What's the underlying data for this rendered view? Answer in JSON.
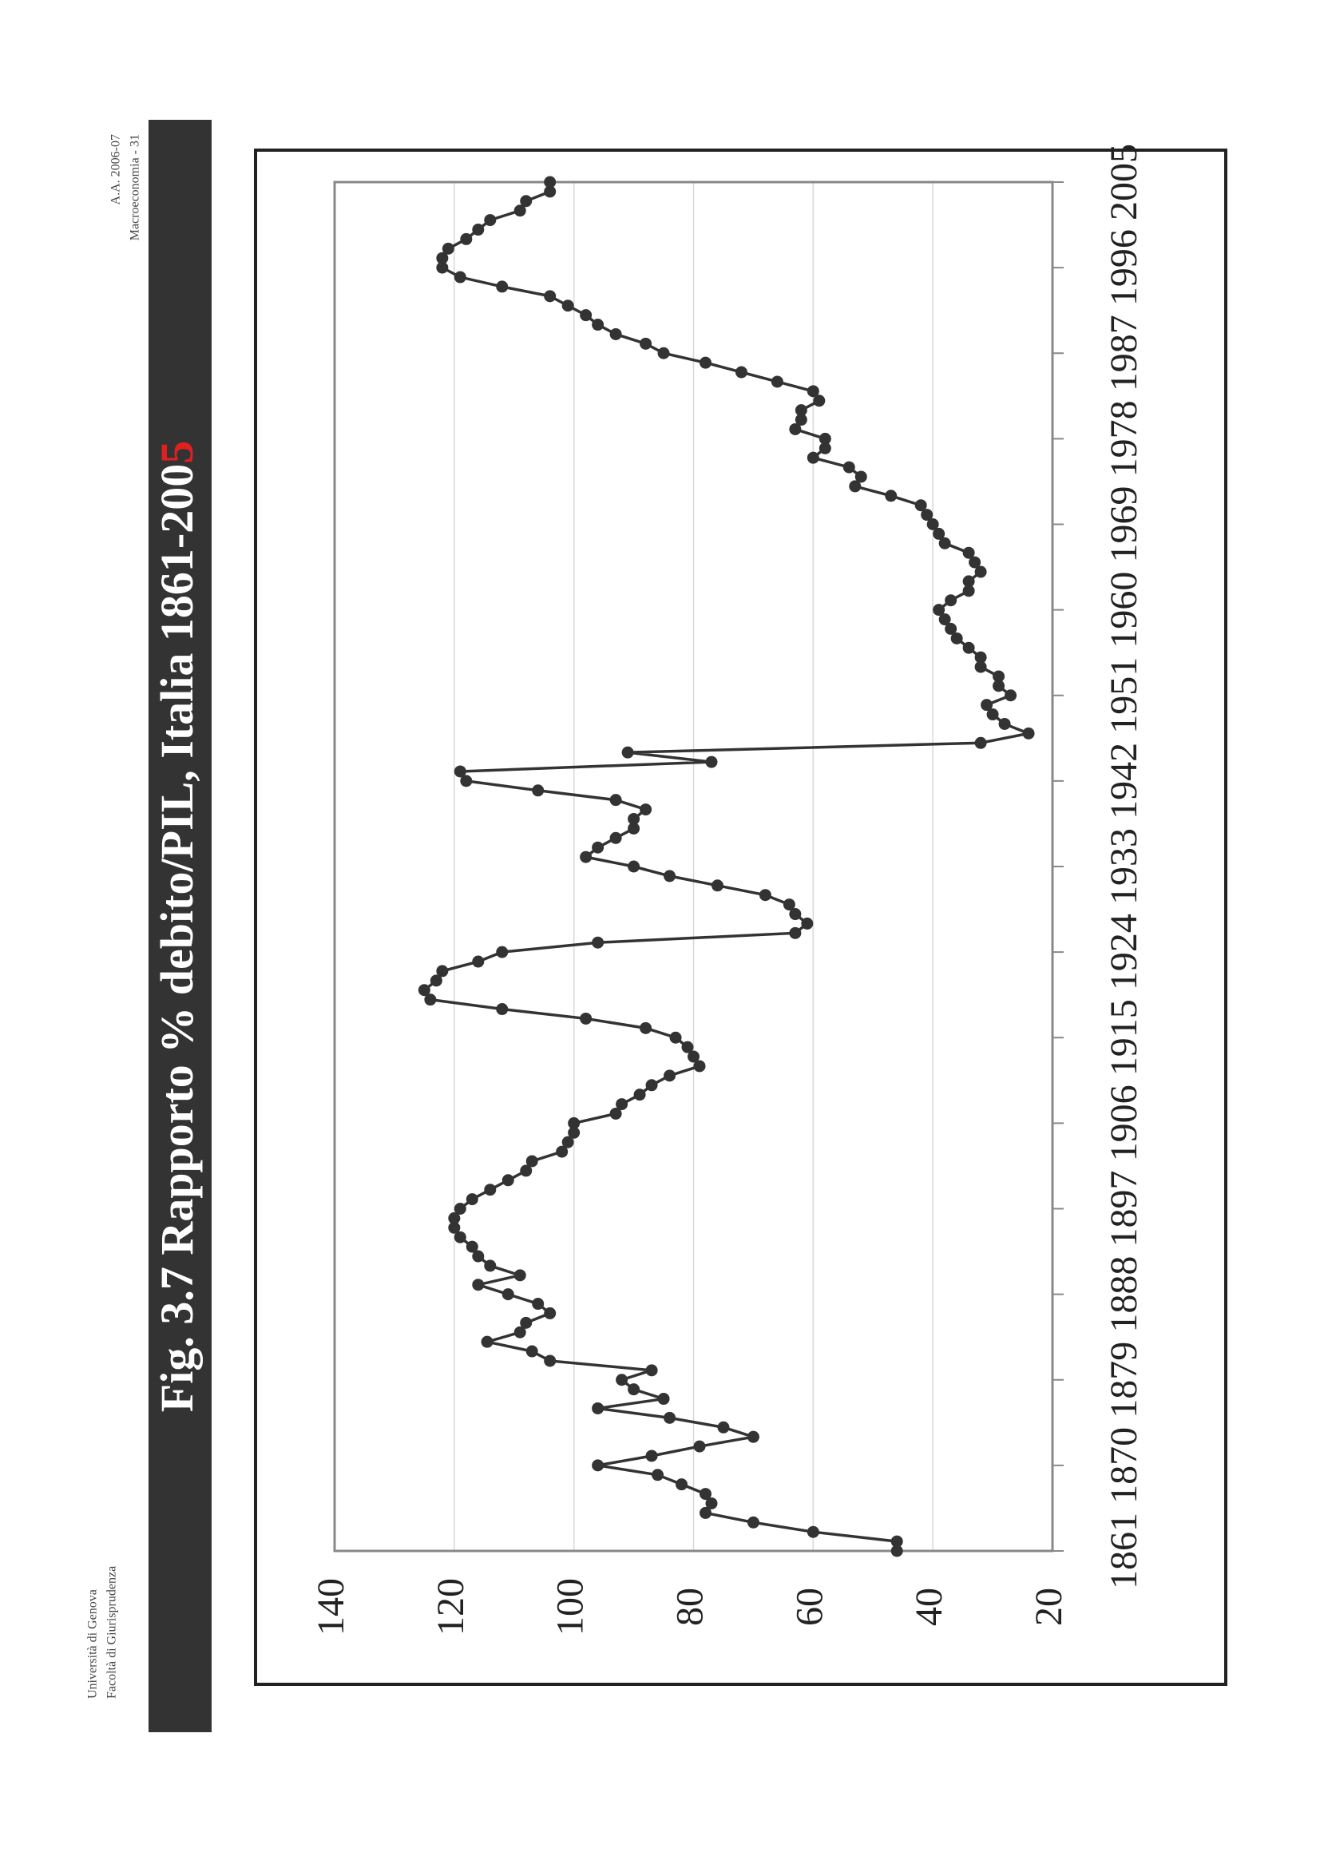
{
  "header": {
    "year": "A.A. 2006-07",
    "course": "Macroeconomia - 31",
    "university": "Università di Genova",
    "faculty": "Facoltà di Giurisprudenza"
  },
  "chart_data": {
    "type": "line",
    "title": "Fig. 3.7  Rapporto % debito/PIL, Italia 1861-200",
    "title_highlight": "5",
    "title_highlight_color": "#e02020",
    "color": "#333333",
    "grid": true,
    "x": [
      1861,
      1862,
      1863,
      1864,
      1865,
      1866,
      1867,
      1868,
      1869,
      1870,
      1871,
      1872,
      1873,
      1874,
      1875,
      1876,
      1877,
      1878,
      1879,
      1880,
      1881,
      1882,
      1883,
      1884,
      1885,
      1886,
      1887,
      1888,
      1889,
      1890,
      1891,
      1892,
      1893,
      1894,
      1895,
      1896,
      1897,
      1898,
      1899,
      1900,
      1901,
      1902,
      1903,
      1904,
      1905,
      1906,
      1907,
      1908,
      1909,
      1910,
      1911,
      1912,
      1913,
      1914,
      1915,
      1916,
      1917,
      1918,
      1919,
      1920,
      1921,
      1922,
      1923,
      1924,
      1925,
      1926,
      1927,
      1928,
      1929,
      1930,
      1931,
      1932,
      1933,
      1934,
      1935,
      1936,
      1937,
      1938,
      1939,
      1940,
      1941,
      1942,
      1943,
      1944,
      1945,
      1946,
      1947,
      1948,
      1949,
      1950,
      1951,
      1952,
      1953,
      1954,
      1955,
      1956,
      1957,
      1958,
      1959,
      1960,
      1961,
      1962,
      1963,
      1964,
      1965,
      1966,
      1967,
      1968,
      1969,
      1970,
      1971,
      1972,
      1973,
      1974,
      1975,
      1976,
      1977,
      1978,
      1979,
      1980,
      1981,
      1982,
      1983,
      1984,
      1985,
      1986,
      1987,
      1988,
      1989,
      1990,
      1991,
      1992,
      1993,
      1994,
      1995,
      1996,
      1997,
      1998,
      1999,
      2000,
      2001,
      2002,
      2003,
      2004,
      2005
    ],
    "values": [
      46,
      46,
      60,
      70,
      78,
      77,
      78,
      82,
      86,
      96,
      87,
      79,
      70,
      75,
      84,
      96,
      85,
      90,
      92,
      87,
      104,
      107,
      114.5,
      109,
      108,
      104,
      106,
      111,
      116,
      109,
      114,
      116,
      117,
      119,
      120,
      120,
      119,
      117,
      114,
      111,
      108,
      107,
      102,
      101,
      100,
      100,
      93,
      92,
      89,
      87,
      84,
      79,
      80,
      81,
      83,
      88,
      98,
      112,
      124,
      125,
      123,
      122,
      116,
      112,
      96,
      63,
      61,
      63,
      64,
      68,
      76,
      84,
      90,
      98,
      96,
      93,
      90,
      90,
      88,
      93,
      106,
      118,
      119,
      77,
      91,
      32,
      24,
      28,
      30,
      31,
      27,
      29,
      29,
      32,
      32,
      34,
      36,
      37,
      38,
      39,
      37,
      34,
      34,
      32,
      33,
      34,
      38,
      39,
      40,
      41,
      42,
      47,
      53,
      52,
      54,
      60,
      58,
      58,
      63,
      62,
      62,
      59,
      60,
      66,
      72,
      78,
      85,
      88,
      93,
      96,
      98,
      101,
      104,
      112,
      119,
      122,
      122,
      121,
      118,
      116,
      114,
      109,
      108,
      104,
      104
    ],
    "xlim": [
      1861,
      2005
    ],
    "xticks": [
      1861,
      1870,
      1879,
      1888,
      1897,
      1906,
      1915,
      1924,
      1933,
      1942,
      1951,
      1960,
      1969,
      1978,
      1987,
      1996,
      2005
    ],
    "ylim": [
      20,
      140
    ],
    "yticks": [
      20,
      40,
      60,
      80,
      100,
      120,
      140
    ]
  }
}
